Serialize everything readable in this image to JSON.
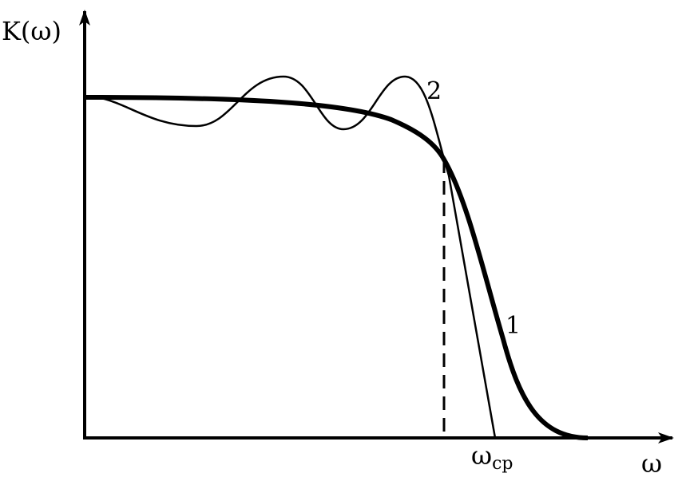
{
  "figure": {
    "y_axis_label": "K(ω)",
    "x_axis_label": "ω",
    "cutoff_label_main": "ω",
    "cutoff_label_sub": "ср",
    "curve_1_label": "1",
    "curve_2_label": "2",
    "line_color": "#000000",
    "background_color": "#ffffff"
  }
}
